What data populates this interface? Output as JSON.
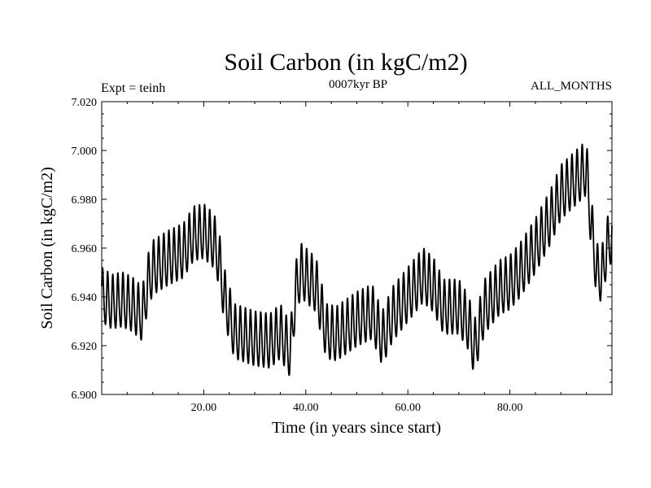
{
  "chart_data": {
    "type": "line",
    "title": "Soil Carbon (in kgC/m2)",
    "subtitle": "0007kyr BP",
    "experiment_label": "Expt = teinh",
    "period_label": "ALL_MONTHS",
    "xlabel": "Time (in years since start)",
    "ylabel": "Soil Carbon (in kgC/m2)",
    "xlim": [
      0,
      100
    ],
    "ylim": [
      6.9,
      7.02
    ],
    "x_ticks": [
      20,
      40,
      60,
      80
    ],
    "x_tick_labels": [
      "20.00",
      "40.00",
      "60.00",
      "80.00"
    ],
    "y_ticks": [
      6.9,
      6.92,
      6.94,
      6.96,
      6.98,
      7.0,
      7.02
    ],
    "y_tick_labels": [
      "6.900",
      "6.920",
      "6.940",
      "6.960",
      "6.980",
      "7.000",
      "7.020"
    ],
    "grid": false,
    "series": [
      {
        "name": "Soil Carbon",
        "color": "#000000",
        "annual_cycle_amplitude": 0.011,
        "baseline": {
          "x": [
            0,
            2,
            4,
            6,
            8,
            9,
            10,
            13,
            16,
            18,
            20,
            22,
            23,
            24,
            26,
            30,
            33,
            35,
            37,
            38,
            39,
            42,
            44,
            46,
            50,
            53,
            55,
            57,
            60,
            63,
            65,
            67,
            70,
            72,
            73,
            75,
            78,
            80,
            82,
            85,
            88,
            90,
            93,
            95,
            96,
            97,
            98,
            99,
            100
          ],
          "y": [
            6.94,
            6.937,
            6.938,
            6.936,
            6.932,
            6.945,
            6.951,
            6.955,
            6.958,
            6.965,
            6.966,
            6.962,
            6.955,
            6.94,
            6.925,
            6.922,
            6.921,
            6.925,
            6.917,
            6.942,
            6.95,
            6.944,
            6.925,
            6.924,
            6.93,
            6.933,
            6.922,
            6.932,
            6.94,
            6.948,
            6.944,
            6.935,
            6.935,
            6.928,
            6.918,
            6.935,
            6.943,
            6.945,
            6.95,
            6.96,
            6.972,
            6.982,
            6.988,
            6.992,
            6.968,
            6.95,
            6.948,
            6.96,
            6.965
          ]
        }
      }
    ]
  }
}
